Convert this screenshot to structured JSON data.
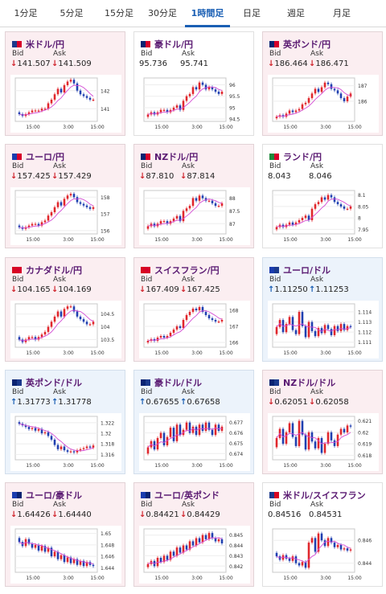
{
  "tabs": [
    {
      "label": "1分足",
      "active": false
    },
    {
      "label": "5分足",
      "active": false
    },
    {
      "label": "15分足",
      "active": false
    },
    {
      "label": "30分足",
      "active": false
    },
    {
      "label": "1時間足",
      "active": true
    },
    {
      "label": "日足",
      "active": false
    },
    {
      "label": "週足",
      "active": false
    },
    {
      "label": "月足",
      "active": false
    }
  ],
  "labels": {
    "bid": "Bid",
    "ask": "Ask"
  },
  "colors": {
    "down_bg": "#fbeef1",
    "up_bg": "#ecf3fb",
    "down_arrow": "#d0242c",
    "up_arrow": "#1a5fb4",
    "candle_up": "#e0262b",
    "candle_down": "#1f3fb0",
    "ma_line": "#d44cd4",
    "title": "#5a1a72"
  },
  "pairs": [
    {
      "name": "米ドル/円",
      "flag": "us-jp",
      "trend": "down",
      "bid": "141.507",
      "ask": "141.509",
      "chart_data": {
        "type": "candlestick",
        "x_ticks": [
          "15:00",
          "3:00",
          "15:00"
        ],
        "y_ticks": [
          "142",
          "141"
        ],
        "ylim": [
          140.3,
          142.7
        ],
        "close": [
          140.7,
          140.6,
          140.7,
          140.8,
          140.9,
          140.9,
          140.9,
          141.0,
          141.0,
          141.3,
          141.5,
          141.8,
          142.1,
          141.9,
          142.3,
          142.5,
          142.6,
          142.4,
          142.0,
          141.8,
          141.7,
          141.6,
          141.5,
          141.5
        ]
      }
    },
    {
      "name": "豪ドル/円",
      "flag": "au-jp",
      "trend": "flat",
      "bid": "95.736",
      "ask": "95.741",
      "chart_data": {
        "type": "candlestick",
        "x_ticks": [
          "15:00",
          "3:00",
          "15:00"
        ],
        "y_ticks": [
          "96",
          "95.5",
          "95",
          "94.5"
        ],
        "ylim": [
          94.4,
          96.3
        ],
        "close": [
          94.7,
          94.8,
          94.7,
          94.8,
          94.9,
          94.9,
          94.8,
          94.9,
          95.0,
          95.1,
          94.9,
          95.3,
          95.5,
          95.6,
          95.9,
          95.8,
          96.1,
          96.0,
          95.8,
          95.9,
          95.8,
          95.7,
          95.6,
          95.7
        ]
      }
    },
    {
      "name": "英ポンド/円",
      "flag": "uk-jp",
      "trend": "down",
      "bid": "186.464",
      "ask": "186.471",
      "chart_data": {
        "type": "candlestick",
        "x_ticks": [
          "15:00",
          "3:00",
          "15:00"
        ],
        "y_ticks": [
          "187",
          "186"
        ],
        "ylim": [
          184.7,
          187.5
        ],
        "close": [
          185.0,
          185.1,
          185.0,
          185.2,
          185.4,
          185.3,
          185.4,
          185.5,
          185.8,
          185.9,
          186.2,
          186.5,
          186.8,
          186.6,
          186.9,
          187.2,
          187.1,
          186.8,
          186.7,
          186.5,
          186.2,
          186.0,
          186.3,
          186.5
        ]
      }
    },
    {
      "name": "ユーロ/円",
      "flag": "eu-jp",
      "trend": "down",
      "bid": "157.425",
      "ask": "157.429",
      "chart_data": {
        "type": "candlestick",
        "x_ticks": [
          "15:00",
          "3:00",
          "15:00"
        ],
        "y_ticks": [
          "158",
          "157",
          "156"
        ],
        "ylim": [
          155.8,
          158.4
        ],
        "close": [
          156.2,
          156.1,
          156.2,
          156.3,
          156.4,
          156.4,
          156.3,
          156.5,
          156.6,
          156.9,
          157.1,
          157.4,
          157.7,
          157.5,
          157.9,
          158.1,
          158.2,
          158.0,
          157.7,
          157.6,
          157.5,
          157.4,
          157.3,
          157.4
        ]
      }
    },
    {
      "name": "NZドル/円",
      "flag": "nz-jp",
      "trend": "down",
      "bid": "87.810",
      "ask": "87.814",
      "chart_data": {
        "type": "candlestick",
        "x_ticks": [
          "15:00",
          "3:00",
          "15:00"
        ],
        "y_ticks": [
          "88",
          "87.5",
          "87"
        ],
        "ylim": [
          86.6,
          88.3
        ],
        "close": [
          86.9,
          87.0,
          86.9,
          87.0,
          87.1,
          87.1,
          87.0,
          87.1,
          87.2,
          87.3,
          87.1,
          87.5,
          87.6,
          87.7,
          88.0,
          87.9,
          88.1,
          88.0,
          87.9,
          87.9,
          87.8,
          87.7,
          87.7,
          87.8
        ]
      }
    },
    {
      "name": "ランド/円",
      "flag": "za-jp",
      "trend": "flat",
      "bid": "8.043",
      "ask": "8.046",
      "chart_data": {
        "type": "candlestick",
        "x_ticks": [
          "15:00",
          "3:00",
          "15:00"
        ],
        "y_ticks": [
          "8.1",
          "8.05",
          "8",
          "7.95"
        ],
        "ylim": [
          7.93,
          8.12
        ],
        "close": [
          7.96,
          7.97,
          7.96,
          7.97,
          7.98,
          7.97,
          7.98,
          7.99,
          8.0,
          8.01,
          7.99,
          8.04,
          8.06,
          8.07,
          8.09,
          8.08,
          8.1,
          8.09,
          8.07,
          8.06,
          8.05,
          8.04,
          8.04,
          8.05
        ]
      }
    },
    {
      "name": "カナダドル/円",
      "flag": "ca-jp",
      "trend": "down",
      "bid": "104.165",
      "ask": "104.169",
      "chart_data": {
        "type": "candlestick",
        "x_ticks": [
          "15:00",
          "3:00",
          "15:00"
        ],
        "y_ticks": [
          "104.5",
          "104",
          "103.5"
        ],
        "ylim": [
          103.2,
          104.9
        ],
        "close": [
          103.5,
          103.4,
          103.5,
          103.6,
          103.6,
          103.5,
          103.6,
          103.7,
          103.8,
          104.0,
          104.2,
          104.4,
          104.6,
          104.4,
          104.7,
          104.8,
          104.8,
          104.6,
          104.4,
          104.3,
          104.2,
          104.1,
          104.1,
          104.2
        ]
      }
    },
    {
      "name": "スイスフラン/円",
      "flag": "ch-jp",
      "trend": "down",
      "bid": "167.409",
      "ask": "167.425",
      "chart_data": {
        "type": "candlestick",
        "x_ticks": [
          "15:00",
          "3:00",
          "15:00"
        ],
        "y_ticks": [
          "168",
          "167",
          "166"
        ],
        "ylim": [
          165.7,
          168.4
        ],
        "close": [
          166.1,
          166.2,
          166.1,
          166.3,
          166.4,
          166.3,
          166.4,
          166.6,
          166.8,
          167.0,
          166.9,
          167.4,
          167.7,
          167.9,
          168.1,
          168.0,
          168.2,
          167.9,
          167.7,
          167.5,
          167.4,
          167.3,
          167.3,
          167.4
        ]
      }
    },
    {
      "name": "ユーロ/ドル",
      "flag": "eu-us",
      "trend": "up",
      "bid": "1.11250",
      "ask": "1.11253",
      "chart_data": {
        "type": "candlestick",
        "x_ticks": [
          "15:00",
          "3:00",
          "15:00"
        ],
        "y_ticks": [
          "1.114",
          "1.113",
          "1.112",
          "1.111"
        ],
        "ylim": [
          1.1105,
          1.1148
        ],
        "close": [
          1.1125,
          1.1132,
          1.112,
          1.1128,
          1.1135,
          1.1122,
          1.1118,
          1.114,
          1.1126,
          1.1115,
          1.113,
          1.1121,
          1.1116,
          1.1124,
          1.1119,
          1.1127,
          1.1123,
          1.1117,
          1.1126,
          1.1121,
          1.1128,
          1.1122,
          1.1126,
          1.1125
        ]
      }
    },
    {
      "name": "英ポンド/ドル",
      "flag": "uk-us",
      "trend": "up",
      "bid": "1.31773",
      "ask": "1.31778",
      "chart_data": {
        "type": "candlestick",
        "x_ticks": [
          "15:00",
          "3:00",
          "15:00"
        ],
        "y_ticks": [
          "1.322",
          "1.32",
          "1.318",
          "1.316"
        ],
        "ylim": [
          1.315,
          1.3232
        ],
        "close": [
          1.3218,
          1.3215,
          1.3212,
          1.3208,
          1.321,
          1.3205,
          1.3208,
          1.32,
          1.3202,
          1.3195,
          1.3188,
          1.3178,
          1.317,
          1.3175,
          1.3168,
          1.3165,
          1.3166,
          1.3164,
          1.3168,
          1.317,
          1.3172,
          1.3175,
          1.3173,
          1.3177
        ]
      }
    },
    {
      "name": "豪ドル/ドル",
      "flag": "au-us",
      "trend": "up",
      "bid": "0.67655",
      "ask": "0.67658",
      "chart_data": {
        "type": "candlestick",
        "x_ticks": [
          "15:00",
          "3:00",
          "15:00"
        ],
        "y_ticks": [
          "0.677",
          "0.676",
          "0.675",
          "0.674"
        ],
        "ylim": [
          0.6734,
          0.6776
        ],
        "close": [
          0.6746,
          0.6752,
          0.6744,
          0.6755,
          0.676,
          0.6748,
          0.6756,
          0.6765,
          0.6752,
          0.6768,
          0.6758,
          0.6763,
          0.677,
          0.676,
          0.6766,
          0.6758,
          0.6768,
          0.6762,
          0.677,
          0.6763,
          0.6758,
          0.6768,
          0.6762,
          0.6766
        ]
      }
    },
    {
      "name": "NZドル/ドル",
      "flag": "nz-us",
      "trend": "down",
      "bid": "0.62051",
      "ask": "0.62058",
      "chart_data": {
        "type": "candlestick",
        "x_ticks": [
          "15:00",
          "3:00",
          "15:00"
        ],
        "y_ticks": [
          "0.621",
          "0.62",
          "0.619",
          "0.618"
        ],
        "ylim": [
          0.6176,
          0.6214
        ],
        "close": [
          0.6195,
          0.6203,
          0.619,
          0.62,
          0.6208,
          0.6196,
          0.6188,
          0.621,
          0.6198,
          0.6185,
          0.62,
          0.6192,
          0.6186,
          0.6195,
          0.6182,
          0.619,
          0.62,
          0.6193,
          0.6188,
          0.6198,
          0.6203,
          0.62,
          0.6206,
          0.6205
        ]
      }
    },
    {
      "name": "ユーロ/豪ドル",
      "flag": "eu-au",
      "trend": "down",
      "bid": "1.64426",
      "ask": "1.64440",
      "chart_data": {
        "type": "candlestick",
        "x_ticks": [
          "15:00",
          "3:00",
          "15:00"
        ],
        "y_ticks": [
          "1.65",
          "1.648",
          "1.646",
          "1.644"
        ],
        "ylim": [
          1.6432,
          1.6508
        ],
        "close": [
          1.6485,
          1.6478,
          1.649,
          1.6482,
          1.6475,
          1.648,
          1.647,
          1.6478,
          1.6468,
          1.6475,
          1.646,
          1.6468,
          1.6455,
          1.6462,
          1.645,
          1.6458,
          1.6448,
          1.6455,
          1.6445,
          1.6452,
          1.6443,
          1.645,
          1.6445,
          1.6443
        ]
      }
    },
    {
      "name": "ユーロ/英ポンド",
      "flag": "eu-uk",
      "trend": "down",
      "bid": "0.84421",
      "ask": "0.84429",
      "chart_data": {
        "type": "candlestick",
        "x_ticks": [
          "15:00",
          "3:00",
          "15:00"
        ],
        "y_ticks": [
          "0.845",
          "0.844",
          "0.843",
          "0.842"
        ],
        "ylim": [
          0.8414,
          0.8456
        ],
        "close": [
          0.8422,
          0.8425,
          0.842,
          0.8428,
          0.8424,
          0.843,
          0.8426,
          0.8434,
          0.843,
          0.8438,
          0.8433,
          0.844,
          0.8436,
          0.8444,
          0.844,
          0.8447,
          0.8443,
          0.845,
          0.8446,
          0.8452,
          0.8447,
          0.8444,
          0.8446,
          0.8442
        ]
      }
    },
    {
      "name": "米ドル/スイスフラン",
      "flag": "us-ch",
      "trend": "flat",
      "bid": "0.84516",
      "ask": "0.84531",
      "chart_data": {
        "type": "candlestick",
        "x_ticks": [
          "15:00",
          "3:00",
          "15:00"
        ],
        "y_ticks": [
          "0.846",
          "0.844"
        ],
        "ylim": [
          0.8432,
          0.847
        ],
        "close": [
          0.8446,
          0.8443,
          0.8447,
          0.8444,
          0.8442,
          0.8446,
          0.844,
          0.8438,
          0.8441,
          0.8436,
          0.8458,
          0.8462,
          0.845,
          0.8466,
          0.846,
          0.8455,
          0.8462,
          0.8458,
          0.8454,
          0.8456,
          0.8452,
          0.8453,
          0.8451,
          0.8452
        ]
      }
    }
  ]
}
